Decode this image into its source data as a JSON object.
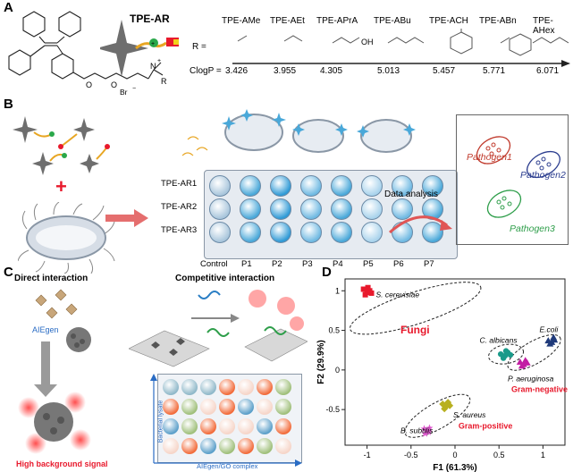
{
  "panels": {
    "a": "A",
    "b": "B",
    "c": "C",
    "d": "D"
  },
  "panel_a": {
    "probe_name": "TPE-AR",
    "structure_labels": {
      "oxygen1": "O",
      "oxygen2": "O",
      "nitrogen": "N",
      "nplus": "+",
      "bromide": "Br",
      "bromide_charge": "−",
      "r_group": "R"
    },
    "series_label_r": "R =",
    "series_label_clogp": "ClogP =",
    "oh_label": "OH",
    "derivatives": [
      {
        "name": "TPE-AMe",
        "clogp": "3.426"
      },
      {
        "name": "TPE-AEt",
        "clogp": "3.955"
      },
      {
        "name": "TPE-APrA",
        "clogp": "4.305"
      },
      {
        "name": "TPE-ABu",
        "clogp": "5.013"
      },
      {
        "name": "TPE-ACH",
        "clogp": "5.457"
      },
      {
        "name": "TPE-ABn",
        "clogp": "5.771"
      },
      {
        "name": "TPE-AHex",
        "clogp": "6.071"
      }
    ]
  },
  "panel_b": {
    "rows": [
      "TPE-AR1",
      "TPE-AR2",
      "TPE-AR3"
    ],
    "columns": [
      "Control",
      "P1",
      "P2",
      "P3",
      "P4",
      "P5",
      "P6",
      "P7"
    ],
    "analysis_label": "Data analysis",
    "pathogens": [
      "Pathogen1",
      "Pathogen2",
      "Pathogen3"
    ],
    "pathogen_colors": [
      "#c0392b",
      "#2c3e8f",
      "#2e9e4a"
    ],
    "plus_sign": "+"
  },
  "panel_c": {
    "direct_title": "Direct interaction",
    "competitive_title": "Competitive interaction",
    "aiegen_label": "AIEgen",
    "high_bg_label": "High background signal",
    "bacterial_lysate_label": "Bacterial lysate",
    "complex_label": "AIEgen/GO complex",
    "well_colors": [
      [
        "#8fb8c9",
        "#8fb8c9",
        "#8fb8c9",
        "#f26b3a",
        "#f6d5c8",
        "#f26b3a",
        "#9fbf7a"
      ],
      [
        "#f26b3a",
        "#9fbf7a",
        "#f6d5c8",
        "#f26b3a",
        "#5b9fc9",
        "#f6d5c8",
        "#9fbf7a"
      ],
      [
        "#5b9fc9",
        "#9fbf7a",
        "#f26b3a",
        "#f6d5c8",
        "#f6d5c8",
        "#5b9fc9",
        "#f26b3a"
      ],
      [
        "#f6d5c8",
        "#f26b3a",
        "#5b9fc9",
        "#9fbf7a",
        "#f26b3a",
        "#9fbf7a",
        "#f6d5c8"
      ]
    ]
  },
  "chart_data": {
    "type": "scatter",
    "xlabel": "F1 (61.3%)",
    "ylabel": "F2 (29.9%)",
    "xlim": [
      -1.25,
      1.25
    ],
    "ylim": [
      -0.95,
      1.15
    ],
    "xticks": [
      -1,
      -0.5,
      0,
      0.5,
      1
    ],
    "yticks": [
      -0.5,
      0,
      0.5,
      1
    ],
    "series": [
      {
        "name": "S. cerevisiae",
        "color": "#e8192c",
        "marker": "square",
        "points": [
          [
            -1.04,
            1.02
          ],
          [
            -1.0,
            0.98
          ],
          [
            -0.97,
            1.0
          ],
          [
            -1.02,
            0.95
          ],
          [
            -0.99,
            1.04
          ],
          [
            -0.95,
            0.97
          ]
        ]
      },
      {
        "name": "C. albicans",
        "color": "#1a9a8a",
        "marker": "circle",
        "points": [
          [
            0.52,
            0.2
          ],
          [
            0.57,
            0.18
          ],
          [
            0.6,
            0.22
          ],
          [
            0.55,
            0.15
          ],
          [
            0.63,
            0.19
          ],
          [
            0.58,
            0.24
          ]
        ]
      },
      {
        "name": "E.coli",
        "color": "#1f3a7a",
        "marker": "triangle",
        "points": [
          [
            1.06,
            0.37
          ],
          [
            1.1,
            0.35
          ],
          [
            1.13,
            0.38
          ],
          [
            1.08,
            0.33
          ],
          [
            1.12,
            0.41
          ]
        ]
      },
      {
        "name": "P. aeruginosa",
        "color": "#c21fa3",
        "marker": "triangle",
        "points": [
          [
            0.74,
            0.1
          ],
          [
            0.78,
            0.07
          ],
          [
            0.8,
            0.12
          ],
          [
            0.76,
            0.05
          ],
          [
            0.82,
            0.09
          ]
        ]
      },
      {
        "name": "S. aureus",
        "color": "#b8b020",
        "marker": "diamond",
        "points": [
          [
            -0.14,
            -0.43
          ],
          [
            -0.1,
            -0.46
          ],
          [
            -0.08,
            -0.41
          ],
          [
            -0.12,
            -0.49
          ],
          [
            -0.06,
            -0.45
          ]
        ]
      },
      {
        "name": "B. subtilis",
        "color": "#e05ad0",
        "marker": "star",
        "points": [
          [
            -0.35,
            -0.74
          ],
          [
            -0.32,
            -0.77
          ],
          [
            -0.29,
            -0.73
          ],
          [
            -0.34,
            -0.8
          ],
          [
            -0.3,
            -0.78
          ]
        ]
      }
    ],
    "annotations": {
      "fungi": "Fungi",
      "gram_negative": "Gram-negative",
      "gram_positive": "Gram-positive",
      "accent_color": "#e8192c"
    }
  }
}
